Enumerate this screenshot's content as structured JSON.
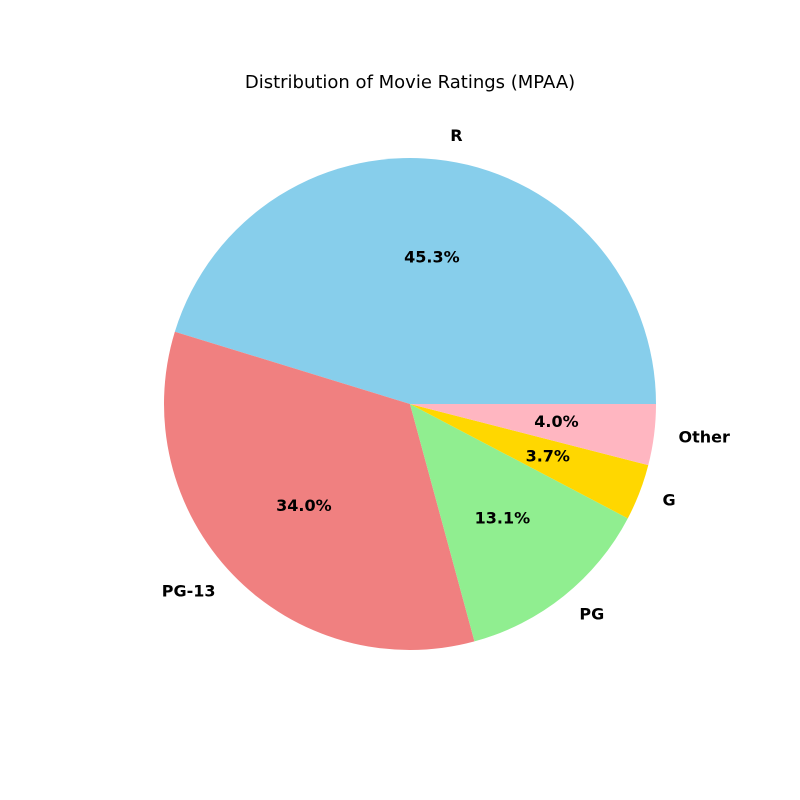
{
  "chart_data": {
    "type": "pie",
    "title": "Distribution of Movie Ratings (MPAA)",
    "categories": [
      "R",
      "PG-13",
      "PG",
      "G",
      "Other"
    ],
    "values": [
      45.3,
      34.0,
      13.1,
      3.7,
      4.0
    ],
    "percent_labels": [
      "45.3%",
      "34.0%",
      "13.1%",
      "3.7%",
      "4.0%"
    ],
    "colors": [
      "#87CEEB",
      "#F08080",
      "#90EE90",
      "#FFD700",
      "#FFB6C1"
    ],
    "start_angle_deg": 0,
    "direction": "counterclockwise",
    "legend": "none"
  }
}
